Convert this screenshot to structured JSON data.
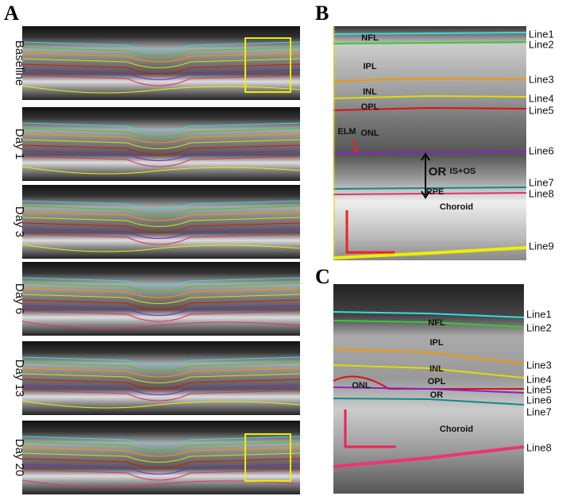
{
  "panels": [
    {
      "label": "A",
      "rows": [
        "Baseline",
        "Day 1",
        "Day 3",
        "Day 6",
        "Day 13",
        "Day 20"
      ]
    },
    {
      "label": "B",
      "layers": [
        "NFL",
        "IPL",
        "INL",
        "OPL",
        "ONL",
        "ELM",
        "IS+OS",
        "OR",
        "RPE",
        "Choroid"
      ],
      "lines": [
        "Line1",
        "Line2",
        "Line3",
        "Line4",
        "Line5",
        "Line6",
        "Line7",
        "Line8",
        "Line9"
      ]
    },
    {
      "label": "C",
      "layers": [
        "NFL",
        "IPL",
        "INL",
        "OPL",
        "ONL",
        "OR",
        "Choroid"
      ],
      "lines": [
        "Line1",
        "Line2",
        "Line3",
        "Line4",
        "Line5",
        "Line6",
        "Line7",
        "Line8"
      ]
    }
  ]
}
